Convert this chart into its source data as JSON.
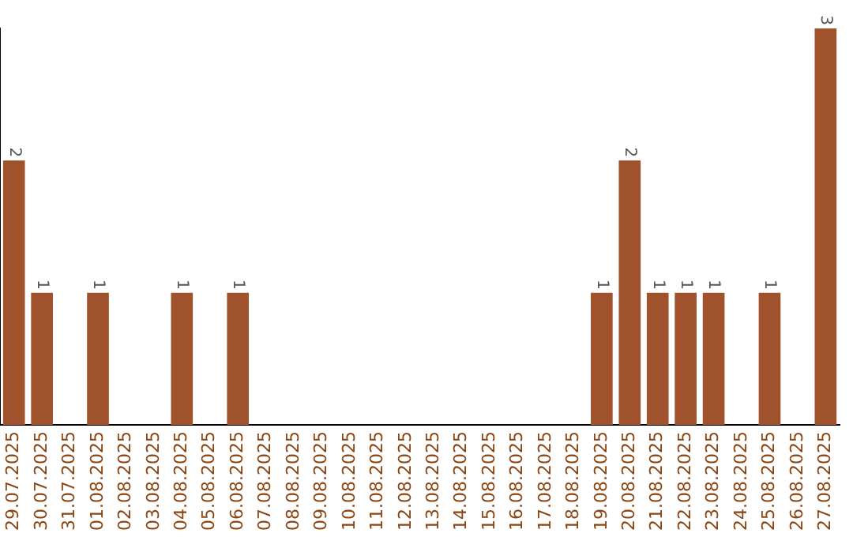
{
  "chart_data": {
    "type": "bar",
    "categories": [
      "29.07.2025",
      "30.07.2025",
      "31.07.2025",
      "01.08.2025",
      "02.08.2025",
      "03.08.2025",
      "04.08.2025",
      "05.08.2025",
      "06.08.2025",
      "07.08.2025",
      "08.08.2025",
      "09.08.2025",
      "10.08.2025",
      "11.08.2025",
      "12.08.2025",
      "13.08.2025",
      "14.08.2025",
      "15.08.2025",
      "16.08.2025",
      "17.08.2025",
      "18.08.2025",
      "19.08.2025",
      "20.08.2025",
      "21.08.2025",
      "22.08.2025",
      "23.08.2025",
      "24.08.2025",
      "25.08.2025",
      "26.08.2025",
      "27.08.2025"
    ],
    "series": [
      {
        "color": "#a0522d",
        "values": [
          2,
          1,
          0,
          1,
          0,
          0,
          1,
          0,
          1,
          0,
          0,
          0,
          0,
          0,
          0,
          0,
          0,
          0,
          0,
          0,
          0,
          1,
          2,
          1,
          1,
          1,
          0,
          1,
          0,
          3
        ],
        "value_labels": [
          "2",
          "1",
          null,
          "1",
          null,
          null,
          "1",
          null,
          "1",
          null,
          null,
          null,
          null,
          null,
          null,
          null,
          null,
          null,
          null,
          null,
          null,
          "1",
          "2",
          "1",
          "1",
          "1",
          null,
          "1",
          null,
          "3"
        ]
      }
    ],
    "grid": false,
    "legend": false
  }
}
